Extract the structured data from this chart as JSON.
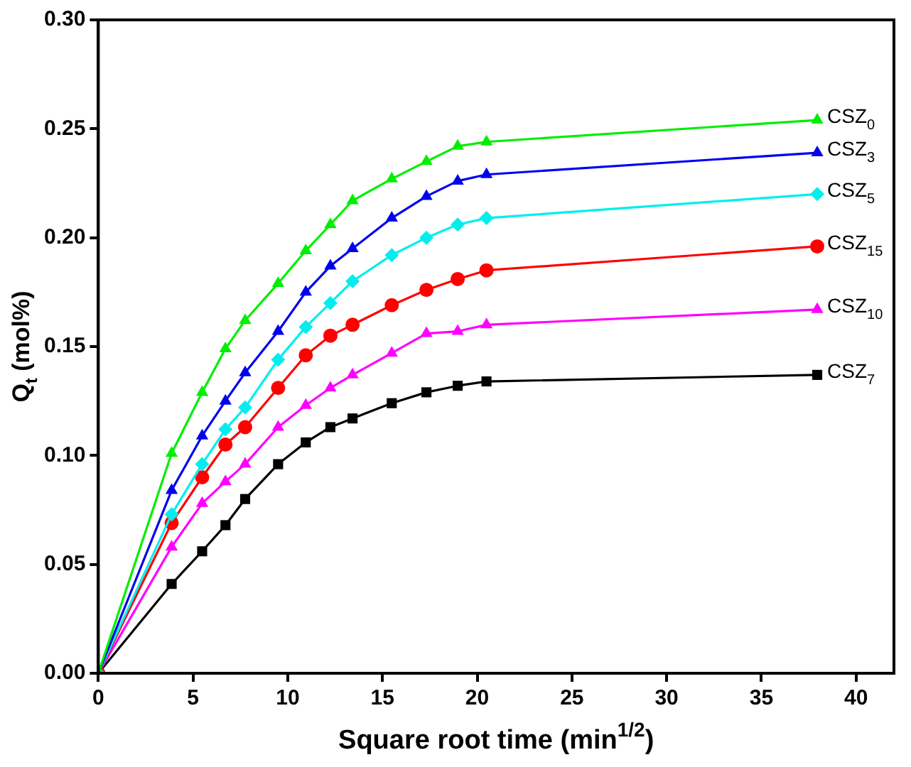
{
  "chart_data": {
    "type": "line",
    "xlabel": "Square root time (min$^{1/2}$)",
    "ylabel": "Q$_{t}$ (mol%)",
    "x": [
      0,
      3.87,
      5.48,
      6.71,
      7.75,
      9.49,
      10.95,
      12.25,
      13.42,
      15.49,
      17.32,
      18.97,
      20.49,
      37.95
    ],
    "xlim": [
      0,
      42
    ],
    "xticks": [
      0,
      5,
      10,
      15,
      20,
      25,
      30,
      35,
      40
    ],
    "ylim": [
      0,
      0.3
    ],
    "yticks": [
      {
        "value": 0,
        "label": "0.00"
      },
      {
        "value": 0.05,
        "label": "0.05"
      },
      {
        "value": 0.1,
        "label": "0.10"
      },
      {
        "value": 0.15,
        "label": "0.15"
      },
      {
        "value": 0.2,
        "label": "0.20"
      },
      {
        "value": 0.25,
        "label": "0.25"
      },
      {
        "value": 0.3,
        "label": "0.30"
      }
    ],
    "grid": false,
    "legend": false,
    "line_style": "solid",
    "series": [
      {
        "name": "CSZ$_{0}$",
        "color": "#00ee00",
        "marker": "triangle",
        "values": [
          0,
          0.101,
          0.129,
          0.149,
          0.162,
          0.179,
          0.194,
          0.206,
          0.217,
          0.227,
          0.235,
          0.242,
          0.244,
          0.254
        ]
      },
      {
        "name": "CSZ$_{3}$",
        "color": "#0000ee",
        "marker": "triangle",
        "values": [
          0,
          0.084,
          0.109,
          0.125,
          0.138,
          0.157,
          0.175,
          0.187,
          0.195,
          0.209,
          0.219,
          0.226,
          0.229,
          0.239
        ]
      },
      {
        "name": "CSZ$_{5}$",
        "color": "#00eeee",
        "marker": "diamond",
        "values": [
          0,
          0.073,
          0.096,
          0.112,
          0.122,
          0.144,
          0.159,
          0.17,
          0.18,
          0.192,
          0.2,
          0.206,
          0.209,
          0.22
        ]
      },
      {
        "name": "CSZ$_{15}$",
        "color": "#ff0000",
        "marker": "circle",
        "values": [
          0,
          0.069,
          0.09,
          0.105,
          0.113,
          0.131,
          0.146,
          0.155,
          0.16,
          0.169,
          0.176,
          0.181,
          0.185,
          0.196
        ]
      },
      {
        "name": "CSZ$_{10}$",
        "color": "#ff00ff",
        "marker": "triangle",
        "values": [
          0,
          0.058,
          0.078,
          0.088,
          0.096,
          0.113,
          0.123,
          0.131,
          0.137,
          0.147,
          0.156,
          0.157,
          0.16,
          0.167
        ]
      },
      {
        "name": "CSZ$_{7}$",
        "color": "#000000",
        "marker": "square",
        "values": [
          0,
          0.041,
          0.056,
          0.068,
          0.08,
          0.096,
          0.106,
          0.113,
          0.117,
          0.124,
          0.129,
          0.132,
          0.134,
          0.137
        ]
      }
    ]
  }
}
